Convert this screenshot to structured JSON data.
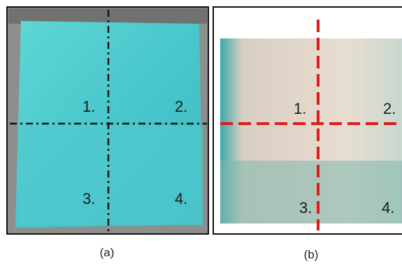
{
  "panels": [
    {
      "caption": "(a)",
      "quadrants": [
        "1.",
        "2.",
        "3.",
        "4."
      ]
    },
    {
      "caption": "(b)",
      "quadrants": [
        "1.",
        "2.",
        "3.",
        "4."
      ]
    }
  ]
}
